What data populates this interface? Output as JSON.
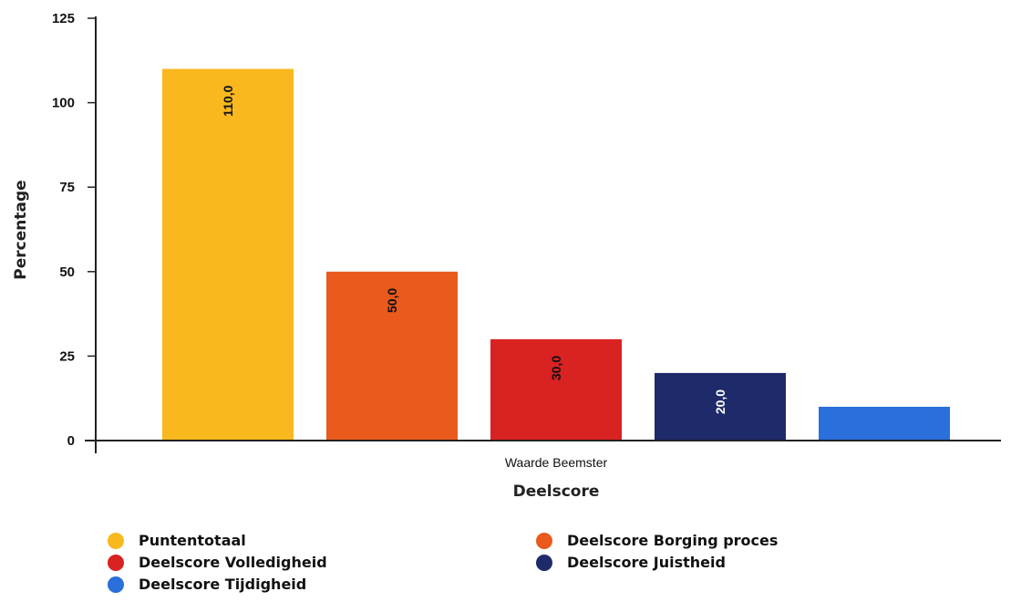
{
  "chart_data": {
    "type": "bar",
    "ylabel": "Percentage",
    "xlabel": "Deelscore",
    "category": "Waarde Beemster",
    "ylim": [
      0,
      125
    ],
    "yticks": [
      0,
      25,
      50,
      75,
      100,
      125
    ],
    "ytick_labels": [
      "0",
      "25",
      "50",
      "75",
      "100",
      "125"
    ],
    "grid": false,
    "legend_position": "bottom",
    "series": [
      {
        "name": "Puntentotaal",
        "value": 110.0,
        "label": "110,0",
        "color": "#f9b81e"
      },
      {
        "name": "Deelscore Borging proces",
        "value": 50.0,
        "label": "50,0",
        "color": "#ea5a1c"
      },
      {
        "name": "Deelscore Volledigheid",
        "value": 30.0,
        "label": "30,0",
        "color": "#d92222"
      },
      {
        "name": "Deelscore Juistheid",
        "value": 20.0,
        "label": "20,0",
        "color": "#1e2a6a"
      },
      {
        "name": "Deelscore Tijdigheid",
        "value": 10.0,
        "label": "",
        "color": "#2a6fdb"
      }
    ]
  }
}
